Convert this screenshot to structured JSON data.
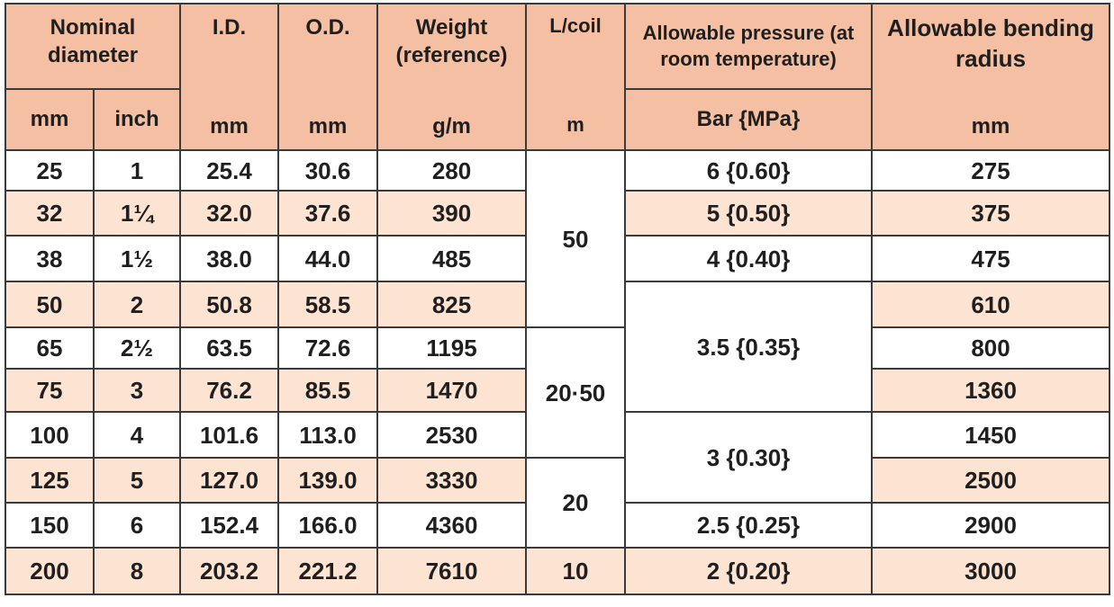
{
  "headers": {
    "nominal_diameter": "Nominal diameter",
    "id": "I.D.",
    "od": "O.D.",
    "weight": "Weight (reference)",
    "lcoil": "L/coil",
    "pressure": "Allowable pressure (at room temperature)",
    "bending": "Allowable bending radius"
  },
  "units": {
    "nd_mm": "mm",
    "nd_inch": "inch",
    "id": "mm",
    "od": "mm",
    "weight": "g/m",
    "lcoil": "m",
    "pressure": "Bar {MPa}",
    "bending": "mm"
  },
  "rows": [
    {
      "mm": "25",
      "inch": "1",
      "id": "25.4",
      "od": "30.6",
      "weight": "280",
      "bend": "275"
    },
    {
      "mm": "32",
      "inch": "1¼",
      "id": "32.0",
      "od": "37.6",
      "weight": "390",
      "bend": "375"
    },
    {
      "mm": "38",
      "inch": "1½",
      "id": "38.0",
      "od": "44.0",
      "weight": "485",
      "bend": "475"
    },
    {
      "mm": "50",
      "inch": "2",
      "id": "50.8",
      "od": "58.5",
      "weight": "825",
      "bend": "610"
    },
    {
      "mm": "65",
      "inch": "2½",
      "id": "63.5",
      "od": "72.6",
      "weight": "1195",
      "bend": "800"
    },
    {
      "mm": "75",
      "inch": "3",
      "id": "76.2",
      "od": "85.5",
      "weight": "1470",
      "bend": "1360"
    },
    {
      "mm": "100",
      "inch": "4",
      "id": "101.6",
      "od": "113.0",
      "weight": "2530",
      "bend": "1450"
    },
    {
      "mm": "125",
      "inch": "5",
      "id": "127.0",
      "od": "139.0",
      "weight": "3330",
      "bend": "2500"
    },
    {
      "mm": "150",
      "inch": "6",
      "id": "152.4",
      "od": "166.0",
      "weight": "4360",
      "bend": "2900"
    },
    {
      "mm": "200",
      "inch": "8",
      "id": "203.2",
      "od": "221.2",
      "weight": "7610",
      "bend": "3000"
    }
  ],
  "lcoil_groups": [
    "50",
    "20·50",
    "20",
    "10"
  ],
  "pressure_groups": [
    "6 {0.60}",
    "5 {0.50}",
    "4 {0.40}",
    "3.5 {0.35}",
    "3 {0.30}",
    "2.5 {0.25}",
    "2 {0.20}"
  ]
}
